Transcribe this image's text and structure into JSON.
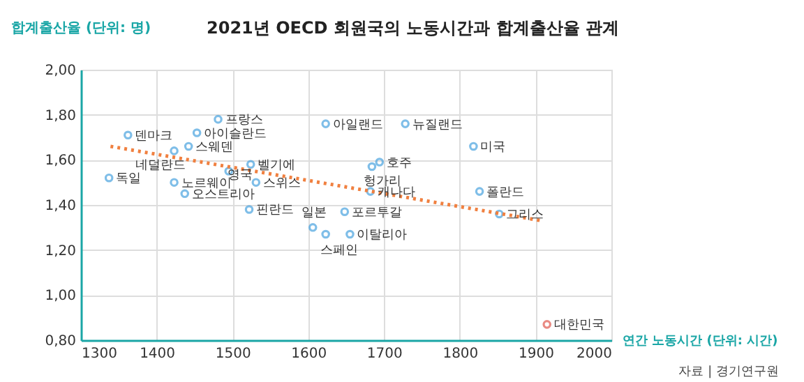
{
  "chart_data": {
    "type": "scatter",
    "title": "2021년 OECD 회원국의 노동시간과 합계출산율 관계",
    "xlabel": "연간 노동시간 (단위: 시간)",
    "ylabel": "합계출산율 (단위: 명)",
    "xlim": [
      1300,
      2000
    ],
    "xticks": [
      1300,
      1400,
      1500,
      1600,
      1700,
      1800,
      1900,
      2000
    ],
    "ylim": [
      0.8,
      2.0
    ],
    "yticks": [
      {
        "value": 0.8,
        "label": "0,80"
      },
      {
        "value": 1.0,
        "label": "1,00"
      },
      {
        "value": 1.2,
        "label": "1,20"
      },
      {
        "value": 1.4,
        "label": "1,40"
      },
      {
        "value": 1.6,
        "label": "1,60"
      },
      {
        "value": 1.8,
        "label": "1,80"
      },
      {
        "value": 2.0,
        "label": "2,00"
      }
    ],
    "grid": true,
    "legend": false,
    "marker": "circle",
    "series": [
      {
        "type": "scatter",
        "color": "#4aa3df",
        "x": [
          1362,
          1337,
          1481,
          1453,
          1442,
          1423,
          1423,
          1437,
          1495,
          1524,
          1531,
          1522,
          1623,
          1728,
          1818,
          1694,
          1684,
          1682,
          1826,
          1852,
          1606,
          1623,
          1648,
          1655
        ],
        "values": [
          1.71,
          1.52,
          1.78,
          1.72,
          1.66,
          1.64,
          1.5,
          1.45,
          1.55,
          1.58,
          1.5,
          1.38,
          1.76,
          1.76,
          1.66,
          1.59,
          1.57,
          1.46,
          1.46,
          1.36,
          1.3,
          1.27,
          1.37,
          1.27
        ]
      },
      {
        "type": "scatter",
        "color": "#e05a4f",
        "x": [
          1915
        ],
        "values": [
          0.87
        ]
      },
      {
        "type": "line",
        "marker": "none",
        "line_style": "dotted",
        "color": "#f08040",
        "x": [
          1339,
          1908
        ],
        "values": [
          1.66,
          1.33
        ]
      }
    ],
    "annotations": [
      {
        "text": "덴마크",
        "x": 1362,
        "y": 1.71
      },
      {
        "text": "독일",
        "x": 1337,
        "y": 1.52
      },
      {
        "text": "프랑스",
        "x": 1481,
        "y": 1.78
      },
      {
        "text": "아이슬란드",
        "x": 1453,
        "y": 1.72
      },
      {
        "text": "스웨덴",
        "x": 1442,
        "y": 1.66
      },
      {
        "text": "네덜란드",
        "x": 1423,
        "y": 1.64
      },
      {
        "text": "노르웨이",
        "x": 1423,
        "y": 1.5
      },
      {
        "text": "오스트리아",
        "x": 1437,
        "y": 1.45
      },
      {
        "text": "영국",
        "x": 1495,
        "y": 1.55
      },
      {
        "text": "벨기에",
        "x": 1524,
        "y": 1.58
      },
      {
        "text": "스위스",
        "x": 1531,
        "y": 1.5
      },
      {
        "text": "핀란드",
        "x": 1522,
        "y": 1.38
      },
      {
        "text": "아일랜드",
        "x": 1623,
        "y": 1.76
      },
      {
        "text": "뉴질랜드",
        "x": 1728,
        "y": 1.76
      },
      {
        "text": "미국",
        "x": 1818,
        "y": 1.66
      },
      {
        "text": "호주",
        "x": 1694,
        "y": 1.59
      },
      {
        "text": "헝가리",
        "x": 1684,
        "y": 1.57
      },
      {
        "text": "캐나다",
        "x": 1682,
        "y": 1.46
      },
      {
        "text": "폴란드",
        "x": 1826,
        "y": 1.46
      },
      {
        "text": "그리스",
        "x": 1852,
        "y": 1.36
      },
      {
        "text": "일본",
        "x": 1606,
        "y": 1.3
      },
      {
        "text": "스페인",
        "x": 1623,
        "y": 1.27
      },
      {
        "text": "포르투갈",
        "x": 1648,
        "y": 1.37
      },
      {
        "text": "이탈리아",
        "x": 1655,
        "y": 1.27
      },
      {
        "text": "대한민국",
        "x": 1915,
        "y": 0.87
      },
      "자료 | 경기연구원"
    ]
  }
}
